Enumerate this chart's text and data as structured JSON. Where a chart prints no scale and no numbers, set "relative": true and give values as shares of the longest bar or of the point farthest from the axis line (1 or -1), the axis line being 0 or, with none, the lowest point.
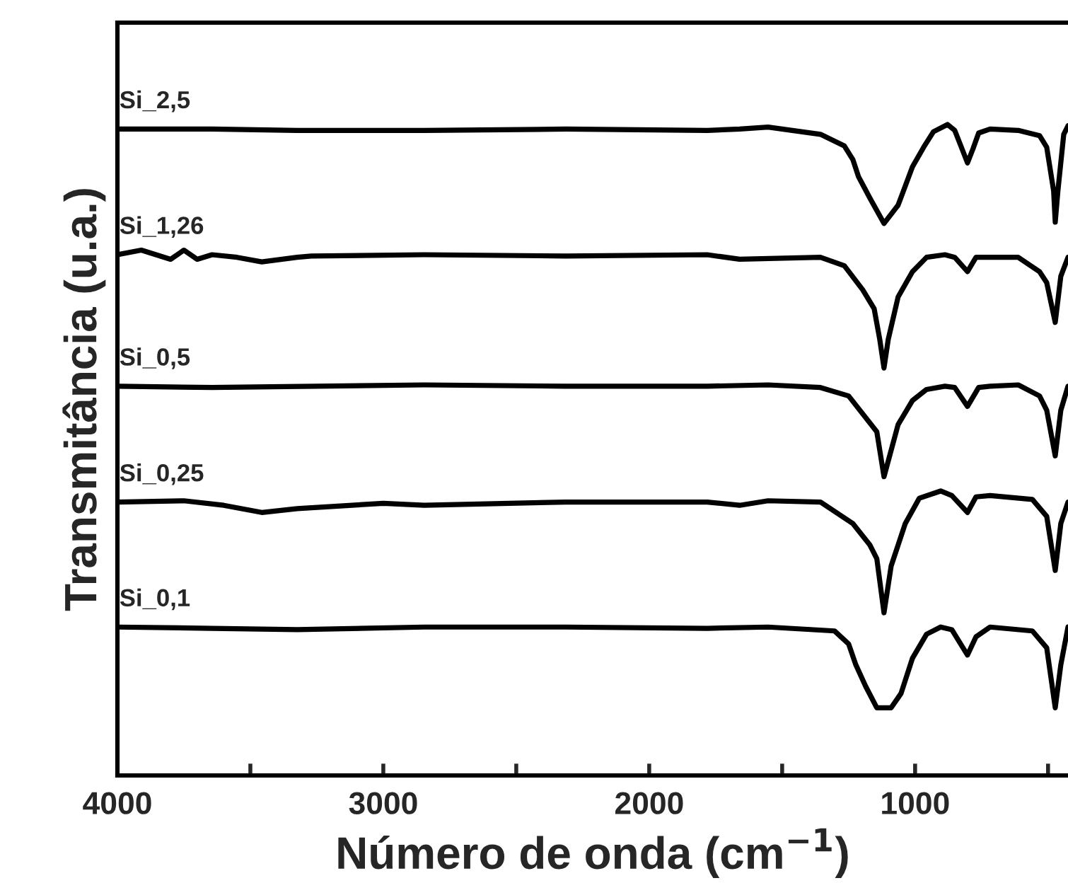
{
  "chart_data": {
    "type": "line",
    "relative": true,
    "xlabel": "Número de onda (cm$^{−1}$)",
    "ylabel": "Transmitância (u.a.)",
    "xlim": [
      4000,
      425
    ],
    "xticks": [
      4000,
      {
        "value": 3500,
        "label": null
      },
      3000,
      {
        "value": 2500,
        "label": null
      },
      2000,
      {
        "value": 1500,
        "label": null
      },
      1000,
      {
        "value": 500,
        "label": null
      }
    ],
    "grid": false,
    "legend": false,
    "marker": "none",
    "line_style": "solid",
    "series": [
      {
        "name": "Si_2,5",
        "color": "#000000",
        "x": [
          4000,
          3644,
          3324,
          2846,
          2314,
          1782,
          1660,
          1553,
          1356,
          1266,
          1234,
          1213,
          1170,
          1117,
          1064,
          1010,
          968,
          931,
          878,
          851,
          824,
          803,
          782,
          761,
          718,
          612,
          532,
          505,
          479,
          473,
          463,
          441,
          425
        ],
        "values": [
          0.993,
          0.993,
          0.991,
          0.991,
          0.993,
          0.991,
          0.993,
          0.996,
          0.985,
          0.967,
          0.946,
          0.92,
          0.887,
          0.848,
          0.876,
          0.935,
          0.965,
          0.989,
          1.0,
          0.991,
          0.963,
          0.941,
          0.963,
          0.987,
          0.993,
          0.991,
          0.983,
          0.965,
          0.898,
          0.85,
          0.898,
          0.985,
          0.998
        ]
      },
      {
        "name": "Si_1,26",
        "color": "#000000",
        "x": [
          4000,
          3910,
          3800,
          3750,
          3700,
          3644,
          3550,
          3457,
          3324,
          3271,
          2846,
          2314,
          1782,
          1660,
          1356,
          1266,
          1197,
          1154,
          1133,
          1117,
          1101,
          1064,
          1010,
          957,
          888,
          851,
          803,
          771,
          718,
          612,
          532,
          505,
          473,
          452,
          425
        ],
        "values": [
          0.8,
          0.807,
          0.793,
          0.807,
          0.793,
          0.8,
          0.796,
          0.789,
          0.796,
          0.798,
          0.8,
          0.798,
          0.8,
          0.793,
          0.796,
          0.783,
          0.746,
          0.717,
          0.67,
          0.626,
          0.67,
          0.735,
          0.774,
          0.796,
          0.8,
          0.796,
          0.774,
          0.796,
          0.796,
          0.796,
          0.774,
          0.757,
          0.696,
          0.767,
          0.796
        ]
      },
      {
        "name": "Si_0,5",
        "color": "#000000",
        "x": [
          4000,
          3644,
          2846,
          2314,
          1782,
          1553,
          1356,
          1250,
          1144,
          1117,
          1064,
          1010,
          957,
          888,
          851,
          803,
          761,
          718,
          612,
          532,
          505,
          473,
          452,
          425
        ],
        "values": [
          0.598,
          0.596,
          0.6,
          0.598,
          0.598,
          0.6,
          0.596,
          0.583,
          0.528,
          0.459,
          0.539,
          0.576,
          0.593,
          0.598,
          0.596,
          0.567,
          0.596,
          0.598,
          0.6,
          0.583,
          0.561,
          0.491,
          0.561,
          0.598
        ]
      },
      {
        "name": "Si_0,25",
        "color": "#000000",
        "x": [
          4000,
          3750,
          3600,
          3457,
          3324,
          3000,
          2846,
          2314,
          1782,
          1660,
          1553,
          1356,
          1234,
          1170,
          1144,
          1117,
          1090,
          1037,
          984,
          904,
          862,
          803,
          771,
          718,
          559,
          505,
          473,
          452,
          425
        ],
        "values": [
          0.42,
          0.422,
          0.415,
          0.404,
          0.41,
          0.418,
          0.415,
          0.42,
          0.42,
          0.415,
          0.422,
          0.42,
          0.387,
          0.354,
          0.333,
          0.25,
          0.322,
          0.387,
          0.426,
          0.437,
          0.43,
          0.404,
          0.428,
          0.43,
          0.424,
          0.398,
          0.315,
          0.387,
          0.42
        ]
      },
      {
        "name": "Si_0,1",
        "color": "#000000",
        "x": [
          4000,
          3644,
          3324,
          2846,
          2314,
          1782,
          1553,
          1303,
          1250,
          1223,
          1186,
          1144,
          1090,
          1053,
          1010,
          957,
          904,
          862,
          803,
          771,
          718,
          559,
          505,
          473,
          452,
          425
        ],
        "values": [
          0.228,
          0.226,
          0.224,
          0.228,
          0.228,
          0.226,
          0.228,
          0.222,
          0.202,
          0.17,
          0.137,
          0.104,
          0.104,
          0.126,
          0.18,
          0.217,
          0.228,
          0.224,
          0.185,
          0.213,
          0.228,
          0.222,
          0.196,
          0.104,
          0.17,
          0.228
        ]
      }
    ]
  }
}
